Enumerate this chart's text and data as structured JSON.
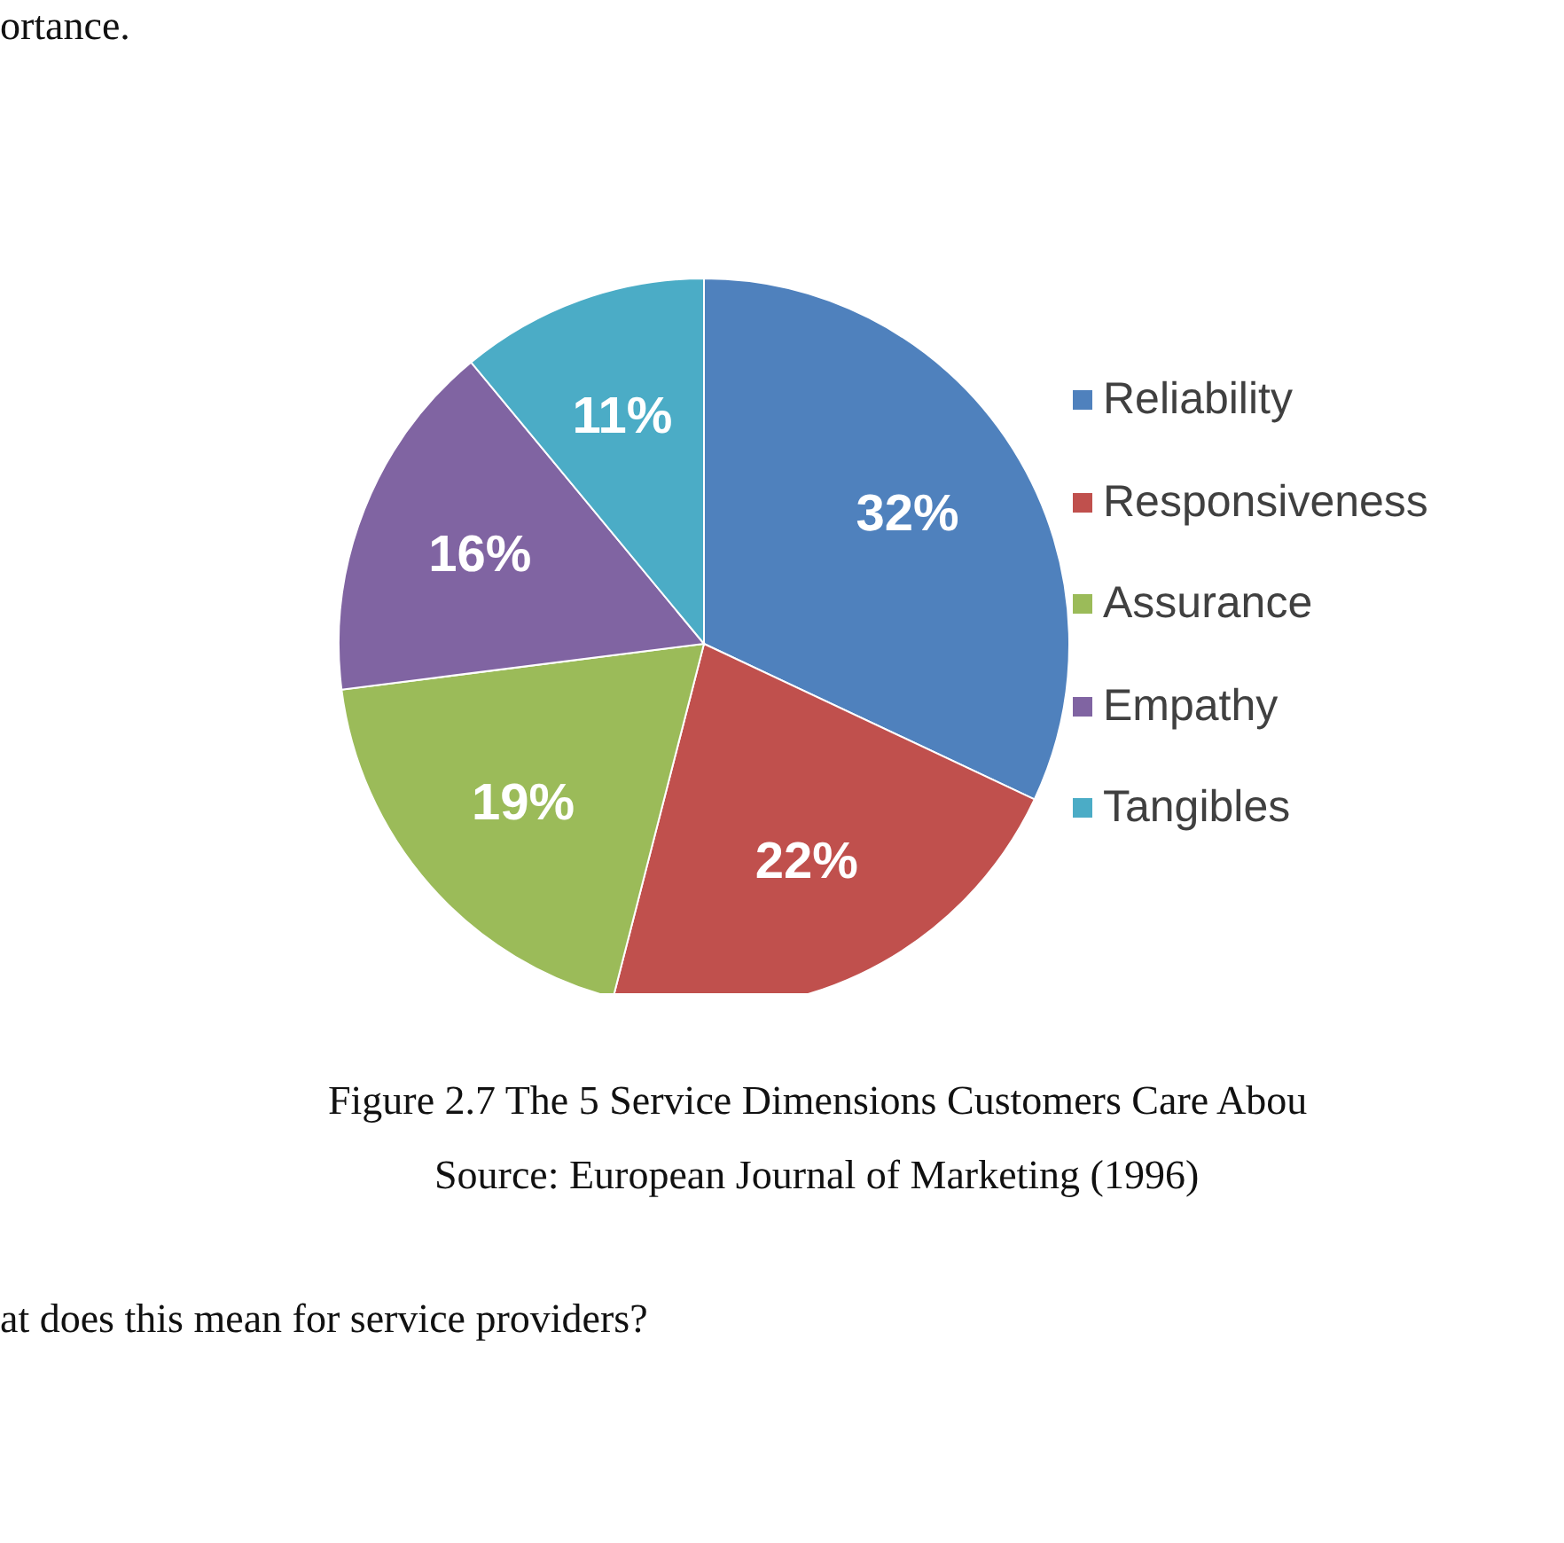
{
  "chart_data": {
    "type": "pie",
    "title": "Figure 2.7 The 5 Service Dimensions Customers Care Abou",
    "categories": [
      "Reliability",
      "Responsiveness",
      "Assurance",
      "Empathy",
      "Tangibles"
    ],
    "values": [
      32,
      22,
      19,
      16,
      11
    ],
    "colors": [
      "#4f81bd",
      "#c0504d",
      "#9bbb59",
      "#8064a2",
      "#4bacc6"
    ],
    "value_labels": [
      "32%",
      "22%",
      "19%",
      "16%",
      "11%"
    ],
    "legend": "right",
    "annotations": [
      "ortance.",
      "Source: European Journal of Marketing (1996)",
      "at does this mean for service providers?"
    ]
  }
}
